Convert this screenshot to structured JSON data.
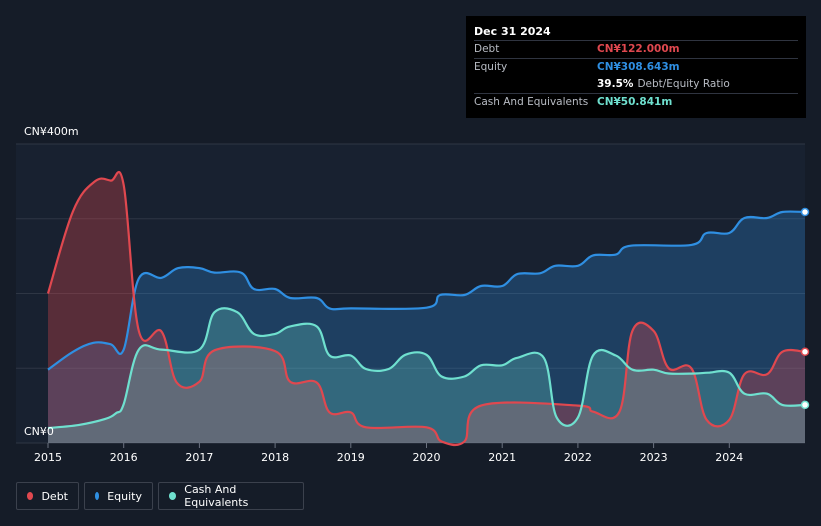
{
  "tooltip": {
    "date": "Dec 31 2024",
    "debt_label": "Debt",
    "debt_value": "CN¥122.000m",
    "equity_label": "Equity",
    "equity_value": "CN¥308.643m",
    "ratio_value": "39.5%",
    "ratio_label": "Debt/Equity Ratio",
    "cash_label": "Cash And Equivalents",
    "cash_value": "CN¥50.841m"
  },
  "legend": {
    "debt": "Debt",
    "equity": "Equity",
    "cash": "Cash And Equivalents"
  },
  "colors": {
    "debt": "#e0484f",
    "equity": "#2f8fe2",
    "cash": "#6fe0cf",
    "background": "#151c28"
  },
  "chart_data": {
    "type": "area",
    "ylabel_top": "CN¥400m",
    "ylabel_bottom": "CN¥0",
    "ylim": [
      0,
      400
    ],
    "xlim": [
      2015,
      2025
    ],
    "x_ticks": [
      "2015",
      "2016",
      "2017",
      "2018",
      "2019",
      "2020",
      "2021",
      "2022",
      "2023",
      "2024"
    ],
    "grid": true,
    "legend_position": "bottom-left",
    "series": [
      {
        "name": "Debt",
        "points": [
          [
            2015.0,
            200
          ],
          [
            2015.33,
            310
          ],
          [
            2015.62,
            350
          ],
          [
            2015.83,
            351
          ],
          [
            2016.0,
            345
          ],
          [
            2016.2,
            150
          ],
          [
            2016.5,
            149
          ],
          [
            2016.7,
            81
          ],
          [
            2017.0,
            82
          ],
          [
            2017.2,
            124
          ],
          [
            2018.0,
            123
          ],
          [
            2018.2,
            82
          ],
          [
            2018.55,
            81
          ],
          [
            2018.72,
            41
          ],
          [
            2019.0,
            41
          ],
          [
            2019.2,
            21
          ],
          [
            2020.0,
            21
          ],
          [
            2020.2,
            2
          ],
          [
            2020.5,
            2
          ],
          [
            2020.72,
            50
          ],
          [
            2022.0,
            50
          ],
          [
            2022.2,
            42
          ],
          [
            2022.55,
            42
          ],
          [
            2022.72,
            150
          ],
          [
            2023.0,
            150
          ],
          [
            2023.2,
            100
          ],
          [
            2023.5,
            100
          ],
          [
            2023.7,
            31
          ],
          [
            2024.0,
            31
          ],
          [
            2024.2,
            92
          ],
          [
            2024.5,
            92
          ],
          [
            2024.7,
            122
          ],
          [
            2025.0,
            122
          ]
        ]
      },
      {
        "name": "Equity",
        "points": [
          [
            2015.0,
            98
          ],
          [
            2015.33,
            122
          ],
          [
            2015.6,
            134
          ],
          [
            2015.83,
            132
          ],
          [
            2016.0,
            125
          ],
          [
            2016.2,
            220
          ],
          [
            2016.5,
            221
          ],
          [
            2016.72,
            234
          ],
          [
            2017.0,
            234
          ],
          [
            2017.2,
            228
          ],
          [
            2017.55,
            228
          ],
          [
            2017.72,
            206
          ],
          [
            2018.0,
            206
          ],
          [
            2018.2,
            194
          ],
          [
            2018.55,
            194
          ],
          [
            2018.72,
            180
          ],
          [
            2019.0,
            180
          ],
          [
            2020.0,
            181
          ],
          [
            2020.18,
            198
          ],
          [
            2020.5,
            198
          ],
          [
            2020.72,
            210
          ],
          [
            2021.0,
            210
          ],
          [
            2021.2,
            226
          ],
          [
            2021.5,
            227
          ],
          [
            2021.7,
            237
          ],
          [
            2022.0,
            237
          ],
          [
            2022.2,
            251
          ],
          [
            2022.5,
            252
          ],
          [
            2022.7,
            264
          ],
          [
            2023.5,
            265
          ],
          [
            2023.7,
            281
          ],
          [
            2024.0,
            281
          ],
          [
            2024.2,
            301
          ],
          [
            2024.5,
            301
          ],
          [
            2024.7,
            309
          ],
          [
            2025.0,
            309
          ]
        ]
      },
      {
        "name": "Cash And Equivalents",
        "points": [
          [
            2015.0,
            20
          ],
          [
            2015.4,
            24
          ],
          [
            2015.75,
            32
          ],
          [
            2015.9,
            40
          ],
          [
            2016.0,
            52
          ],
          [
            2016.2,
            125
          ],
          [
            2016.5,
            125
          ],
          [
            2017.0,
            125
          ],
          [
            2017.2,
            175
          ],
          [
            2017.5,
            175
          ],
          [
            2017.72,
            146
          ],
          [
            2018.0,
            146
          ],
          [
            2018.2,
            156
          ],
          [
            2018.55,
            156
          ],
          [
            2018.72,
            117
          ],
          [
            2019.0,
            117
          ],
          [
            2019.2,
            99
          ],
          [
            2019.5,
            99
          ],
          [
            2019.72,
            118
          ],
          [
            2020.0,
            118
          ],
          [
            2020.2,
            89
          ],
          [
            2020.5,
            89
          ],
          [
            2020.72,
            104
          ],
          [
            2021.0,
            104
          ],
          [
            2021.2,
            114
          ],
          [
            2021.55,
            114
          ],
          [
            2021.72,
            34
          ],
          [
            2022.0,
            34
          ],
          [
            2022.2,
            117
          ],
          [
            2022.5,
            117
          ],
          [
            2022.72,
            98
          ],
          [
            2023.0,
            98
          ],
          [
            2023.2,
            93
          ],
          [
            2023.55,
            93
          ],
          [
            2023.72,
            94
          ],
          [
            2024.0,
            94
          ],
          [
            2024.2,
            66
          ],
          [
            2024.5,
            66
          ],
          [
            2024.7,
            51
          ],
          [
            2025.0,
            51
          ]
        ]
      }
    ]
  }
}
